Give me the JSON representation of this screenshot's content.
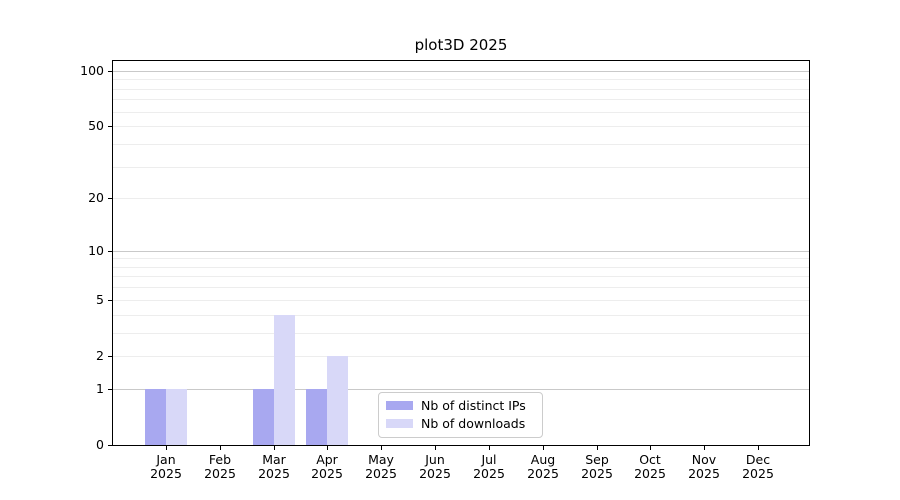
{
  "chart_data": {
    "type": "bar",
    "title": "plot3D 2025",
    "categories": [
      "Jan",
      "Feb",
      "Mar",
      "Apr",
      "May",
      "Jun",
      "Jul",
      "Aug",
      "Sep",
      "Oct",
      "Nov",
      "Dec"
    ],
    "category_year": "2025",
    "series": [
      {
        "name": "Nb of distinct IPs",
        "color": "#a8a8f0",
        "values": [
          1,
          0,
          1,
          1,
          0,
          0,
          0,
          0,
          0,
          0,
          0,
          0
        ]
      },
      {
        "name": "Nb of downloads",
        "color": "#d8d8f8",
        "values": [
          1,
          0,
          4,
          2,
          0,
          0,
          0,
          0,
          0,
          0,
          0,
          0
        ]
      }
    ],
    "xlabel": "",
    "ylabel": "",
    "yticks": [
      0,
      1,
      2,
      5,
      10,
      20,
      50,
      100
    ],
    "ylim": [
      0,
      113
    ],
    "scale": {
      "type": "log1p",
      "major_gridlines": [
        1,
        10,
        100
      ],
      "minor_gridlines": [
        2,
        3,
        4,
        5,
        6,
        7,
        8,
        9,
        20,
        30,
        40,
        50,
        60,
        70,
        80,
        90
      ]
    },
    "grid": "on",
    "legend_position": "lower-center"
  },
  "colors": {
    "bar_distinct_ips": "#a8a8f0",
    "bar_downloads": "#d8d8f8",
    "grid_major": "#c9c9c9",
    "grid_minor": "#ededed",
    "spine": "#000000",
    "legend_border": "#cccccc",
    "text": "#000000"
  }
}
